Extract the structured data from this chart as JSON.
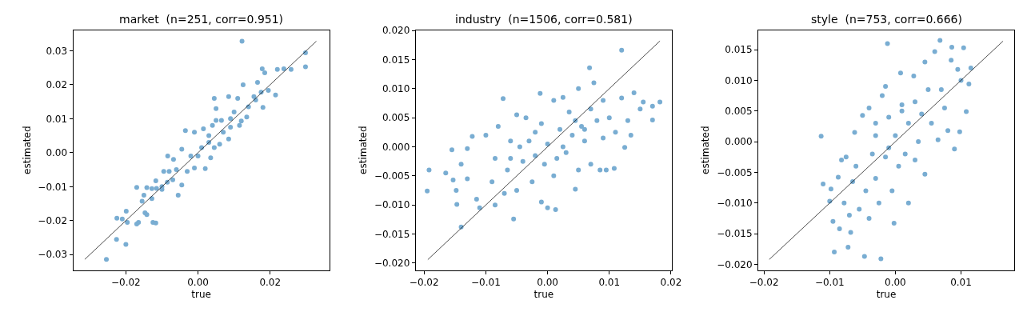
{
  "chart_data": [
    {
      "type": "scatter",
      "title": "market  (n=251, corr=0.951)",
      "xlabel": "true",
      "ylabel": "estimated",
      "grid": false,
      "xlim": [
        -0.0346,
        0.0364
      ],
      "ylim": [
        -0.0346,
        0.0361
      ],
      "xticks": [
        {
          "value": -0.02,
          "label": "−0.02"
        },
        {
          "value": 0,
          "label": "0.00"
        },
        {
          "value": 0.02,
          "label": "0.02"
        }
      ],
      "yticks": [
        {
          "value": -0.03,
          "label": "−0.03"
        },
        {
          "value": -0.02,
          "label": "−0.02"
        },
        {
          "value": -0.01,
          "label": "−0.01"
        },
        {
          "value": 0,
          "label": "0.00"
        },
        {
          "value": 0.01,
          "label": "0.01"
        },
        {
          "value": 0.02,
          "label": "0.02"
        },
        {
          "value": 0.03,
          "label": "0.03"
        }
      ],
      "series": [
        {
          "color": "#79add2",
          "marker": "circle",
          "x": [
            -0.0254,
            -0.02,
            -0.0226,
            -0.0225,
            -0.0199,
            -0.0196,
            -0.021,
            -0.017,
            -0.0165,
            -0.0147,
            -0.0142,
            -0.0125,
            -0.0117,
            -0.017,
            -0.0155,
            -0.015,
            -0.0142,
            -0.0128,
            -0.0128,
            -0.0115,
            -0.0117,
            -0.01,
            -0.0095,
            -0.0085,
            -0.008,
            -0.0084,
            -0.0068,
            -0.007,
            -0.0055,
            -0.0045,
            -0.0035,
            -0.0045,
            -0.003,
            -0.002,
            -0.001,
            -0.001,
            0.0,
            0.001,
            0.002,
            0.0015,
            0.003,
            0.0035,
            0.004,
            0.0045,
            0.005,
            0.0045,
            0.005,
            0.006,
            0.0065,
            0.0085,
            0.0085,
            0.009,
            0.01,
            0.011,
            0.0115,
            0.012,
            0.0125,
            0.0122,
            0.0135,
            0.014,
            0.016,
            0.0165,
            0.018,
            0.0178,
            0.0185,
            0.0195,
            0.0215,
            0.022,
            0.0238,
            0.0258,
            0.0298,
            0.0298,
            0.0175,
            0.0155,
            0.007,
            0.003,
            -0.006,
            -0.01,
            0.009
          ],
          "values": [
            -0.0314,
            -0.027,
            -0.0255,
            -0.0193,
            -0.0172,
            -0.0205,
            -0.0195,
            -0.021,
            -0.0205,
            -0.0177,
            -0.0182,
            -0.0205,
            -0.0207,
            -0.0102,
            -0.0143,
            -0.0125,
            -0.0103,
            -0.0106,
            -0.0135,
            -0.0105,
            -0.0083,
            -0.0108,
            -0.0055,
            -0.0087,
            -0.0055,
            -0.001,
            -0.002,
            -0.008,
            -0.0125,
            -0.0095,
            0.0065,
            0.001,
            -0.0055,
            -0.001,
            0.006,
            -0.0045,
            -0.001,
            0.0015,
            -0.0047,
            0.007,
            0.005,
            -0.0015,
            0.008,
            0.0015,
            0.0095,
            0.016,
            0.013,
            0.0025,
            0.0095,
            0.0165,
            0.004,
            0.01,
            0.012,
            0.016,
            0.008,
            0.0093,
            0.02,
            0.0328,
            0.0105,
            0.0135,
            0.0155,
            0.0207,
            0.0133,
            0.0247,
            0.0235,
            0.0183,
            0.017,
            0.0245,
            0.0247,
            0.0245,
            0.0294,
            0.0253,
            0.0178,
            0.0165,
            0.006,
            0.003,
            -0.005,
            -0.01,
            0.0075
          ]
        },
        {
          "type": "line",
          "color": "#000000",
          "x": [
            -0.0314,
            0.0328
          ],
          "values": [
            -0.0314,
            0.0328
          ]
        }
      ]
    },
    {
      "type": "scatter",
      "title": "industry  (n=1506, corr=0.581)",
      "xlabel": "true",
      "ylabel": "estimated",
      "grid": false,
      "xlim": [
        -0.02136,
        0.02013
      ],
      "ylim": [
        -0.02123,
        0.02009
      ],
      "xticks": [
        {
          "value": -0.02,
          "label": "−0.02"
        },
        {
          "value": -0.01,
          "label": "−0.01"
        },
        {
          "value": 0,
          "label": "0.00"
        },
        {
          "value": 0.01,
          "label": "0.01"
        },
        {
          "value": 0.02,
          "label": "0.02"
        }
      ],
      "yticks": [
        {
          "value": -0.02,
          "label": "−0.020"
        },
        {
          "value": -0.015,
          "label": "−0.015"
        },
        {
          "value": -0.01,
          "label": "−0.010"
        },
        {
          "value": -0.005,
          "label": "−0.005"
        },
        {
          "value": 0,
          "label": "0.000"
        },
        {
          "value": 0.005,
          "label": "0.005"
        },
        {
          "value": 0.01,
          "label": "0.010"
        },
        {
          "value": 0.015,
          "label": "0.015"
        },
        {
          "value": 0.02,
          "label": "0.020"
        }
      ],
      "series": [
        {
          "color": "#79add2",
          "marker": "circle",
          "x": [
            -0.0195,
            -0.0192,
            -0.0165,
            -0.0155,
            -0.0153,
            -0.0148,
            -0.0147,
            -0.014,
            -0.014,
            -0.013,
            -0.013,
            -0.0122,
            -0.0115,
            -0.011,
            -0.01,
            -0.009,
            -0.0085,
            -0.008,
            -0.0072,
            -0.007,
            -0.0065,
            -0.006,
            -0.0055,
            -0.005,
            -0.005,
            -0.004,
            -0.0035,
            -0.003,
            -0.0025,
            -0.002,
            -0.0012,
            -0.001,
            -0.001,
            -0.0005,
            0.0,
            0.0,
            0.001,
            0.0013,
            0.0015,
            0.002,
            0.0025,
            0.003,
            0.0035,
            0.004,
            0.0045,
            0.005,
            0.005,
            0.0055,
            0.006,
            0.0068,
            0.007,
            0.007,
            0.0075,
            0.008,
            0.0085,
            0.009,
            0.009,
            0.01,
            0.0095,
            0.0108,
            0.011,
            0.012,
            0.012,
            0.0125,
            0.013,
            0.014,
            0.015,
            0.0155,
            0.017,
            0.017,
            0.0182,
            0.0135,
            -0.0085,
            -0.0045,
            0.0025,
            0.0045,
            -0.002,
            0.001,
            -0.006,
            0.006
          ],
          "values": [
            -0.0076,
            -0.004,
            -0.0045,
            -0.0005,
            -0.0057,
            -0.0075,
            -0.0099,
            -0.003,
            -0.0138,
            -0.0003,
            -0.0055,
            0.0018,
            -0.009,
            -0.0105,
            0.002,
            -0.006,
            -0.01,
            0.0035,
            0.0083,
            -0.008,
            -0.004,
            0.001,
            -0.0124,
            0.0055,
            -0.0075,
            -0.0025,
            0.005,
            0.001,
            -0.006,
            -0.0015,
            0.0092,
            0.004,
            -0.0095,
            -0.003,
            0.0005,
            -0.0105,
            0.008,
            -0.0108,
            -0.002,
            0.003,
            0.0085,
            -0.001,
            0.006,
            0.002,
            -0.0073,
            0.01,
            -0.004,
            0.0035,
            0.001,
            0.0136,
            -0.003,
            0.0065,
            0.011,
            0.0045,
            -0.004,
            0.008,
            0.0015,
            0.005,
            -0.004,
            -0.0037,
            0.0025,
            0.0084,
            0.0166,
            -0.0001,
            0.0045,
            0.0093,
            0.0065,
            0.0077,
            0.007,
            0.0046,
            0.0077,
            0.002,
            -0.002,
            0.0,
            0.0,
            0.0045,
            0.0025,
            -0.005,
            -0.002,
            0.003
          ]
        },
        {
          "type": "line",
          "color": "#000000",
          "x": [
            -0.0194,
            0.0182
          ],
          "values": [
            -0.0194,
            0.0182
          ]
        }
      ]
    },
    {
      "type": "scatter",
      "title": "style  (n=753, corr=0.666)",
      "xlabel": "true",
      "ylabel": "estimated",
      "grid": false,
      "xlim": [
        -0.02088,
        0.01812
      ],
      "ylim": [
        -0.02096,
        0.01821
      ],
      "xticks": [
        {
          "value": -0.02,
          "label": "−0.02"
        },
        {
          "value": -0.01,
          "label": "−0.01"
        },
        {
          "value": 0,
          "label": "0.00"
        },
        {
          "value": 0.01,
          "label": "0.01"
        }
      ],
      "yticks": [
        {
          "value": -0.02,
          "label": "−0.020"
        },
        {
          "value": -0.015,
          "label": "−0.015"
        },
        {
          "value": -0.01,
          "label": "−0.010"
        },
        {
          "value": -0.005,
          "label": "−0.005"
        },
        {
          "value": 0,
          "label": "0.000"
        },
        {
          "value": 0.005,
          "label": "0.005"
        },
        {
          "value": 0.01,
          "label": "0.010"
        },
        {
          "value": 0.015,
          "label": "0.015"
        }
      ],
      "series": [
        {
          "color": "#79add2",
          "marker": "circle",
          "x": [
            -0.0113,
            -0.011,
            -0.01,
            -0.0098,
            -0.0095,
            -0.0093,
            -0.0087,
            -0.0085,
            -0.0082,
            -0.0078,
            -0.0075,
            -0.0072,
            -0.007,
            -0.0068,
            -0.0065,
            -0.0062,
            -0.006,
            -0.0055,
            -0.005,
            -0.0047,
            -0.0045,
            -0.004,
            -0.004,
            -0.0035,
            -0.003,
            -0.003,
            -0.0025,
            -0.0022,
            -0.002,
            -0.0015,
            -0.0012,
            -0.0015,
            -0.001,
            -0.0005,
            -0.0002,
            0.0,
            0.0005,
            0.0008,
            0.001,
            0.0015,
            0.002,
            0.002,
            0.0028,
            0.003,
            0.0035,
            0.004,
            0.0045,
            0.0045,
            0.005,
            0.0055,
            0.006,
            0.0065,
            0.0068,
            0.007,
            0.0075,
            0.008,
            0.0085,
            0.0086,
            0.009,
            0.0095,
            0.0098,
            0.01,
            0.0104,
            0.0108,
            0.0112,
            0.0115,
            0.003,
            -0.003,
            0.001,
            -0.001
          ],
          "values": [
            0.0009,
            -0.0069,
            -0.0097,
            -0.0077,
            -0.013,
            -0.018,
            -0.0058,
            -0.0142,
            -0.003,
            -0.01,
            -0.0025,
            -0.0172,
            -0.012,
            -0.0148,
            -0.0065,
            0.0015,
            -0.004,
            -0.011,
            0.0043,
            -0.0187,
            -0.008,
            0.0055,
            -0.0125,
            -0.002,
            0.003,
            -0.006,
            -0.01,
            -0.0191,
            0.0075,
            0.009,
            0.016,
            -0.0025,
            0.004,
            -0.008,
            -0.0133,
            0.001,
            -0.004,
            0.0112,
            0.006,
            -0.002,
            -0.01,
            0.003,
            0.0107,
            0.0065,
            0.0,
            0.0045,
            0.013,
            -0.0053,
            0.0085,
            0.003,
            0.0147,
            0.0003,
            0.0165,
            0.0085,
            0.0055,
            0.0018,
            0.0133,
            0.0154,
            -0.0012,
            0.0118,
            0.0016,
            0.01,
            0.0153,
            0.0049,
            0.0094,
            0.012,
            -0.003,
            0.001,
            0.005,
            -0.001
          ]
        },
        {
          "type": "line",
          "color": "#000000",
          "x": [
            -0.0192,
            0.0164
          ],
          "values": [
            -0.0192,
            0.0164
          ]
        }
      ]
    }
  ]
}
